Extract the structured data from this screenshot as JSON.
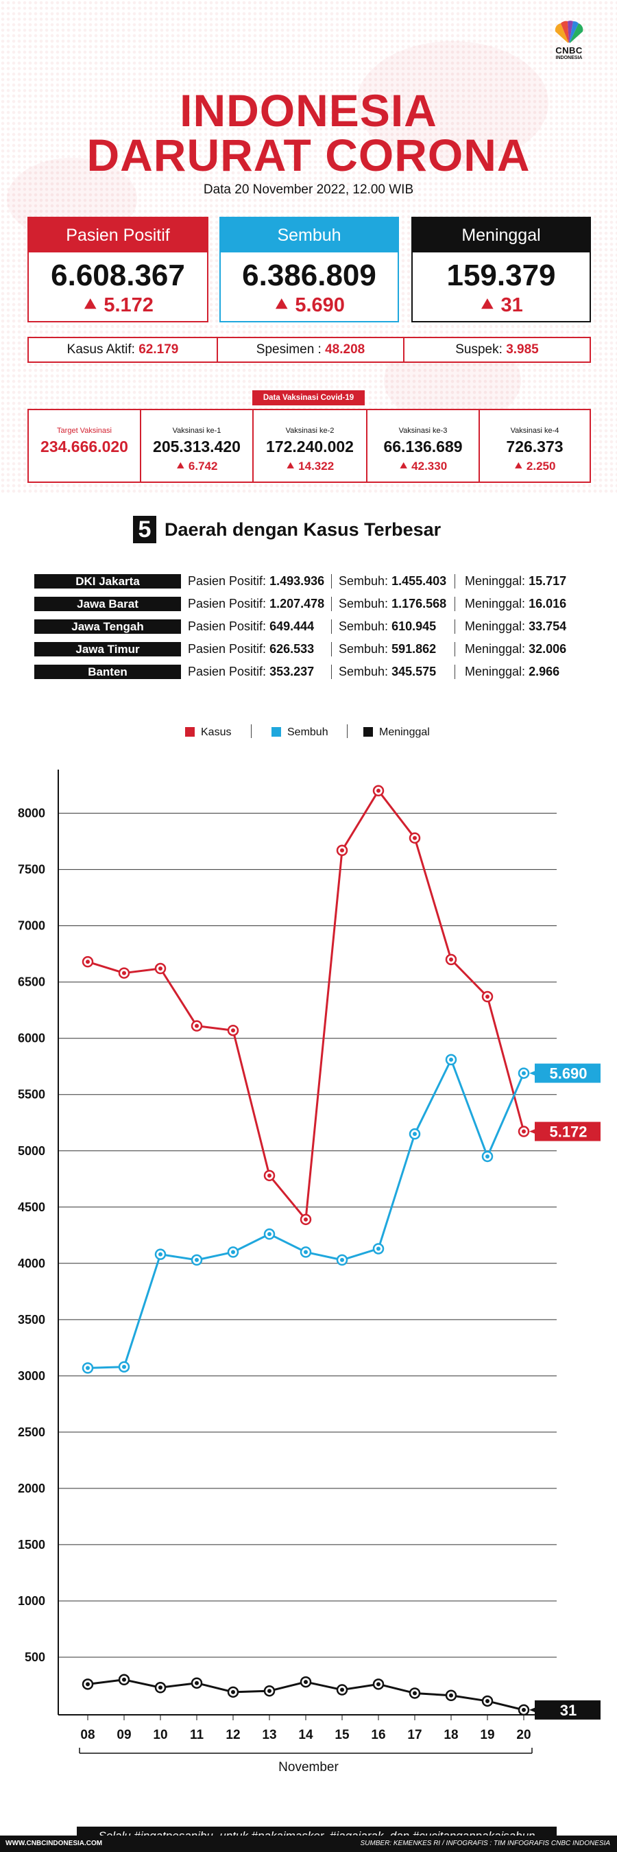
{
  "brand": {
    "logo_line1": "CNBC",
    "logo_line2": "INDONESIA",
    "colors": {
      "red": "#d2202f",
      "blue": "#1fa7dd",
      "black": "#111111"
    }
  },
  "header": {
    "title_line1": "INDONESIA",
    "title_line2": "DARURAT CORONA",
    "subtitle": "Data 20 November 2022, 12.00 WIB"
  },
  "cards": [
    {
      "label": "Pasien Positif",
      "value": "6.608.367",
      "delta": "5.172",
      "color": "#d2202f"
    },
    {
      "label": "Sembuh",
      "value": "6.386.809",
      "delta": "5.690",
      "color": "#1fa7dd"
    },
    {
      "label": "Meninggal",
      "value": "159.379",
      "delta": "31",
      "color": "#111111"
    }
  ],
  "strip": [
    {
      "label": "Kasus Aktif:",
      "value": "62.179"
    },
    {
      "label": "Spesimen :",
      "value": "48.208"
    },
    {
      "label": "Suspek:",
      "value": "3.985"
    }
  ],
  "vaccination": {
    "header": "Data Vaksinasi Covid-19",
    "target": {
      "label": "Target Vaksinasi",
      "value": "234.666.020"
    },
    "doses": [
      {
        "label": "Vaksinasi ke-1",
        "value": "205.313.420",
        "increase": "6.742"
      },
      {
        "label": "Vaksinasi ke-2",
        "value": "172.240.002",
        "increase": "14.322"
      },
      {
        "label": "Vaksinasi ke-3",
        "value": "66.136.689",
        "increase": "42.330"
      },
      {
        "label": "Vaksinasi ke-4",
        "value": "726.373",
        "increase": "2.250"
      }
    ]
  },
  "regions": {
    "number": "5",
    "title": "Daerah dengan Kasus Terbesar",
    "positive_label": "Pasien Positif:",
    "recovered_label": "Sembuh:",
    "deaths_label": "Meninggal:",
    "rows": [
      {
        "name": "DKI Jakarta",
        "positive": "1.493.936",
        "recovered": "1.455.403",
        "deaths": "15.717"
      },
      {
        "name": "Jawa Barat",
        "positive": "1.207.478",
        "recovered": "1.176.568",
        "deaths": "16.016"
      },
      {
        "name": "Jawa Tengah",
        "positive": "649.444",
        "recovered": "610.945",
        "deaths": "33.754"
      },
      {
        "name": "Jawa Timur",
        "positive": "626.533",
        "recovered": "591.862",
        "deaths": "32.006"
      },
      {
        "name": "Banten",
        "positive": "353.237",
        "recovered": "345.575",
        "deaths": "2.966"
      }
    ]
  },
  "chart_data": {
    "type": "line",
    "x": [
      "08",
      "09",
      "10",
      "11",
      "12",
      "13",
      "14",
      "15",
      "16",
      "17",
      "18",
      "19",
      "20"
    ],
    "xlabel": "November",
    "ylabel": "",
    "ylim": [
      0,
      8400
    ],
    "yticks": [
      500,
      1000,
      1500,
      2000,
      2500,
      3000,
      3500,
      4000,
      4500,
      5000,
      5500,
      6000,
      6500,
      7000,
      7500,
      8000
    ],
    "grid": true,
    "legend": "top-center",
    "series": [
      {
        "name": "Kasus",
        "color": "#d2202f",
        "values": [
          6680,
          6580,
          6620,
          6110,
          6070,
          4780,
          4390,
          7670,
          8200,
          7780,
          6700,
          6370,
          5172
        ],
        "end_label": "5.172"
      },
      {
        "name": "Sembuh",
        "color": "#1fa7dd",
        "values": [
          3070,
          3080,
          4080,
          4030,
          4100,
          4260,
          4100,
          4030,
          4130,
          5150,
          5810,
          4950,
          5690
        ],
        "end_label": "5.690"
      },
      {
        "name": "Meninggal",
        "color": "#111111",
        "values": [
          260,
          300,
          230,
          270,
          190,
          200,
          280,
          210,
          260,
          180,
          160,
          110,
          31
        ],
        "end_label": "31"
      }
    ]
  },
  "footer": {
    "tagline": "Selalu #ingatpesanibu, untuk #pakaimasker, #jagajarak, dan #cucitanganpakaisabun",
    "site": "WWW.CNBCINDONESIA.COM",
    "source": "SUMBER: KEMENKES RI / INFOGRAFIS : TIM INFOGRAFIS CNBC INDONESIA"
  }
}
